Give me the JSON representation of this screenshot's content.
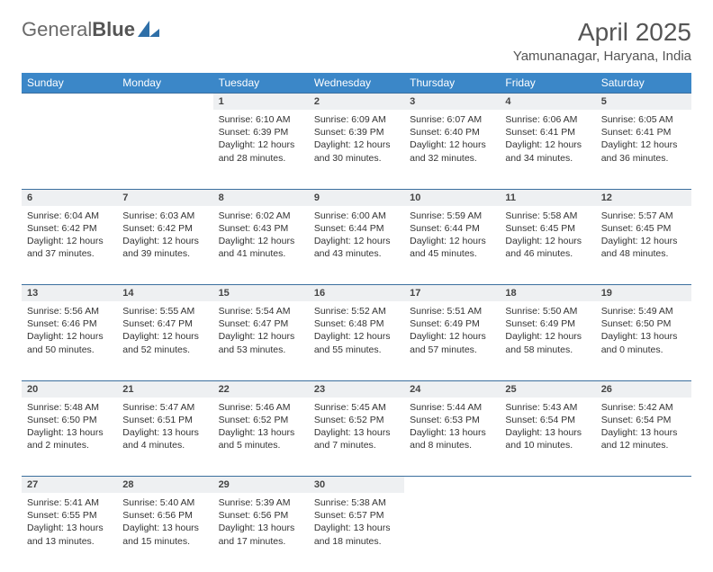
{
  "logo": {
    "text1": "General",
    "text2": "Blue",
    "iconColor": "#2f6fa8"
  },
  "title": "April 2025",
  "location": "Yamunanagar, Haryana, India",
  "colors": {
    "headerBg": "#3b87c8",
    "rowStripe": "#eef0f2",
    "rule": "#3b6f9e"
  },
  "dayHeaders": [
    "Sunday",
    "Monday",
    "Tuesday",
    "Wednesday",
    "Thursday",
    "Friday",
    "Saturday"
  ],
  "weeks": [
    [
      null,
      null,
      {
        "n": "1",
        "sr": "Sunrise: 6:10 AM",
        "ss": "Sunset: 6:39 PM",
        "d1": "Daylight: 12 hours",
        "d2": "and 28 minutes."
      },
      {
        "n": "2",
        "sr": "Sunrise: 6:09 AM",
        "ss": "Sunset: 6:39 PM",
        "d1": "Daylight: 12 hours",
        "d2": "and 30 minutes."
      },
      {
        "n": "3",
        "sr": "Sunrise: 6:07 AM",
        "ss": "Sunset: 6:40 PM",
        "d1": "Daylight: 12 hours",
        "d2": "and 32 minutes."
      },
      {
        "n": "4",
        "sr": "Sunrise: 6:06 AM",
        "ss": "Sunset: 6:41 PM",
        "d1": "Daylight: 12 hours",
        "d2": "and 34 minutes."
      },
      {
        "n": "5",
        "sr": "Sunrise: 6:05 AM",
        "ss": "Sunset: 6:41 PM",
        "d1": "Daylight: 12 hours",
        "d2": "and 36 minutes."
      }
    ],
    [
      {
        "n": "6",
        "sr": "Sunrise: 6:04 AM",
        "ss": "Sunset: 6:42 PM",
        "d1": "Daylight: 12 hours",
        "d2": "and 37 minutes."
      },
      {
        "n": "7",
        "sr": "Sunrise: 6:03 AM",
        "ss": "Sunset: 6:42 PM",
        "d1": "Daylight: 12 hours",
        "d2": "and 39 minutes."
      },
      {
        "n": "8",
        "sr": "Sunrise: 6:02 AM",
        "ss": "Sunset: 6:43 PM",
        "d1": "Daylight: 12 hours",
        "d2": "and 41 minutes."
      },
      {
        "n": "9",
        "sr": "Sunrise: 6:00 AM",
        "ss": "Sunset: 6:44 PM",
        "d1": "Daylight: 12 hours",
        "d2": "and 43 minutes."
      },
      {
        "n": "10",
        "sr": "Sunrise: 5:59 AM",
        "ss": "Sunset: 6:44 PM",
        "d1": "Daylight: 12 hours",
        "d2": "and 45 minutes."
      },
      {
        "n": "11",
        "sr": "Sunrise: 5:58 AM",
        "ss": "Sunset: 6:45 PM",
        "d1": "Daylight: 12 hours",
        "d2": "and 46 minutes."
      },
      {
        "n": "12",
        "sr": "Sunrise: 5:57 AM",
        "ss": "Sunset: 6:45 PM",
        "d1": "Daylight: 12 hours",
        "d2": "and 48 minutes."
      }
    ],
    [
      {
        "n": "13",
        "sr": "Sunrise: 5:56 AM",
        "ss": "Sunset: 6:46 PM",
        "d1": "Daylight: 12 hours",
        "d2": "and 50 minutes."
      },
      {
        "n": "14",
        "sr": "Sunrise: 5:55 AM",
        "ss": "Sunset: 6:47 PM",
        "d1": "Daylight: 12 hours",
        "d2": "and 52 minutes."
      },
      {
        "n": "15",
        "sr": "Sunrise: 5:54 AM",
        "ss": "Sunset: 6:47 PM",
        "d1": "Daylight: 12 hours",
        "d2": "and 53 minutes."
      },
      {
        "n": "16",
        "sr": "Sunrise: 5:52 AM",
        "ss": "Sunset: 6:48 PM",
        "d1": "Daylight: 12 hours",
        "d2": "and 55 minutes."
      },
      {
        "n": "17",
        "sr": "Sunrise: 5:51 AM",
        "ss": "Sunset: 6:49 PM",
        "d1": "Daylight: 12 hours",
        "d2": "and 57 minutes."
      },
      {
        "n": "18",
        "sr": "Sunrise: 5:50 AM",
        "ss": "Sunset: 6:49 PM",
        "d1": "Daylight: 12 hours",
        "d2": "and 58 minutes."
      },
      {
        "n": "19",
        "sr": "Sunrise: 5:49 AM",
        "ss": "Sunset: 6:50 PM",
        "d1": "Daylight: 13 hours",
        "d2": "and 0 minutes."
      }
    ],
    [
      {
        "n": "20",
        "sr": "Sunrise: 5:48 AM",
        "ss": "Sunset: 6:50 PM",
        "d1": "Daylight: 13 hours",
        "d2": "and 2 minutes."
      },
      {
        "n": "21",
        "sr": "Sunrise: 5:47 AM",
        "ss": "Sunset: 6:51 PM",
        "d1": "Daylight: 13 hours",
        "d2": "and 4 minutes."
      },
      {
        "n": "22",
        "sr": "Sunrise: 5:46 AM",
        "ss": "Sunset: 6:52 PM",
        "d1": "Daylight: 13 hours",
        "d2": "and 5 minutes."
      },
      {
        "n": "23",
        "sr": "Sunrise: 5:45 AM",
        "ss": "Sunset: 6:52 PM",
        "d1": "Daylight: 13 hours",
        "d2": "and 7 minutes."
      },
      {
        "n": "24",
        "sr": "Sunrise: 5:44 AM",
        "ss": "Sunset: 6:53 PM",
        "d1": "Daylight: 13 hours",
        "d2": "and 8 minutes."
      },
      {
        "n": "25",
        "sr": "Sunrise: 5:43 AM",
        "ss": "Sunset: 6:54 PM",
        "d1": "Daylight: 13 hours",
        "d2": "and 10 minutes."
      },
      {
        "n": "26",
        "sr": "Sunrise: 5:42 AM",
        "ss": "Sunset: 6:54 PM",
        "d1": "Daylight: 13 hours",
        "d2": "and 12 minutes."
      }
    ],
    [
      {
        "n": "27",
        "sr": "Sunrise: 5:41 AM",
        "ss": "Sunset: 6:55 PM",
        "d1": "Daylight: 13 hours",
        "d2": "and 13 minutes."
      },
      {
        "n": "28",
        "sr": "Sunrise: 5:40 AM",
        "ss": "Sunset: 6:56 PM",
        "d1": "Daylight: 13 hours",
        "d2": "and 15 minutes."
      },
      {
        "n": "29",
        "sr": "Sunrise: 5:39 AM",
        "ss": "Sunset: 6:56 PM",
        "d1": "Daylight: 13 hours",
        "d2": "and 17 minutes."
      },
      {
        "n": "30",
        "sr": "Sunrise: 5:38 AM",
        "ss": "Sunset: 6:57 PM",
        "d1": "Daylight: 13 hours",
        "d2": "and 18 minutes."
      },
      null,
      null,
      null
    ]
  ]
}
